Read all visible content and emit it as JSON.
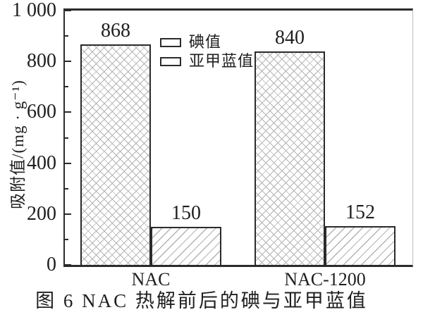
{
  "figure_caption": "图 6  NAC 热解前后的碘与亚甲蓝值",
  "chart_data": {
    "type": "bar",
    "title": "",
    "categories": [
      "NAC",
      "NAC-1200"
    ],
    "series": [
      {
        "name": "碘值",
        "pattern": "crosshatch",
        "values": [
          868,
          840
        ]
      },
      {
        "name": "亚甲蓝值",
        "pattern": "diagonal",
        "values": [
          150,
          152
        ]
      }
    ],
    "bar_value_labels": [
      [
        "868",
        "840"
      ],
      [
        "150",
        "152"
      ]
    ],
    "ylabel": "吸附值/(mg · g⁻¹)",
    "xlabel": "",
    "ylim": [
      0,
      1000
    ],
    "yticks_major": [
      0,
      200,
      400,
      600,
      800,
      1000
    ],
    "ytick_labels": [
      "0",
      "200",
      "400",
      "600",
      "800",
      "1 000"
    ],
    "yticks_minor": [
      100,
      300,
      500,
      700,
      900
    ],
    "grid": false,
    "legend_position": "upper-left-inside"
  },
  "colors": {
    "axis": "#2b2b2b",
    "text": "#1f1f1f",
    "hatch": "#b3b3b3",
    "right_border": "#bdbdbd",
    "background": "#ffffff"
  }
}
